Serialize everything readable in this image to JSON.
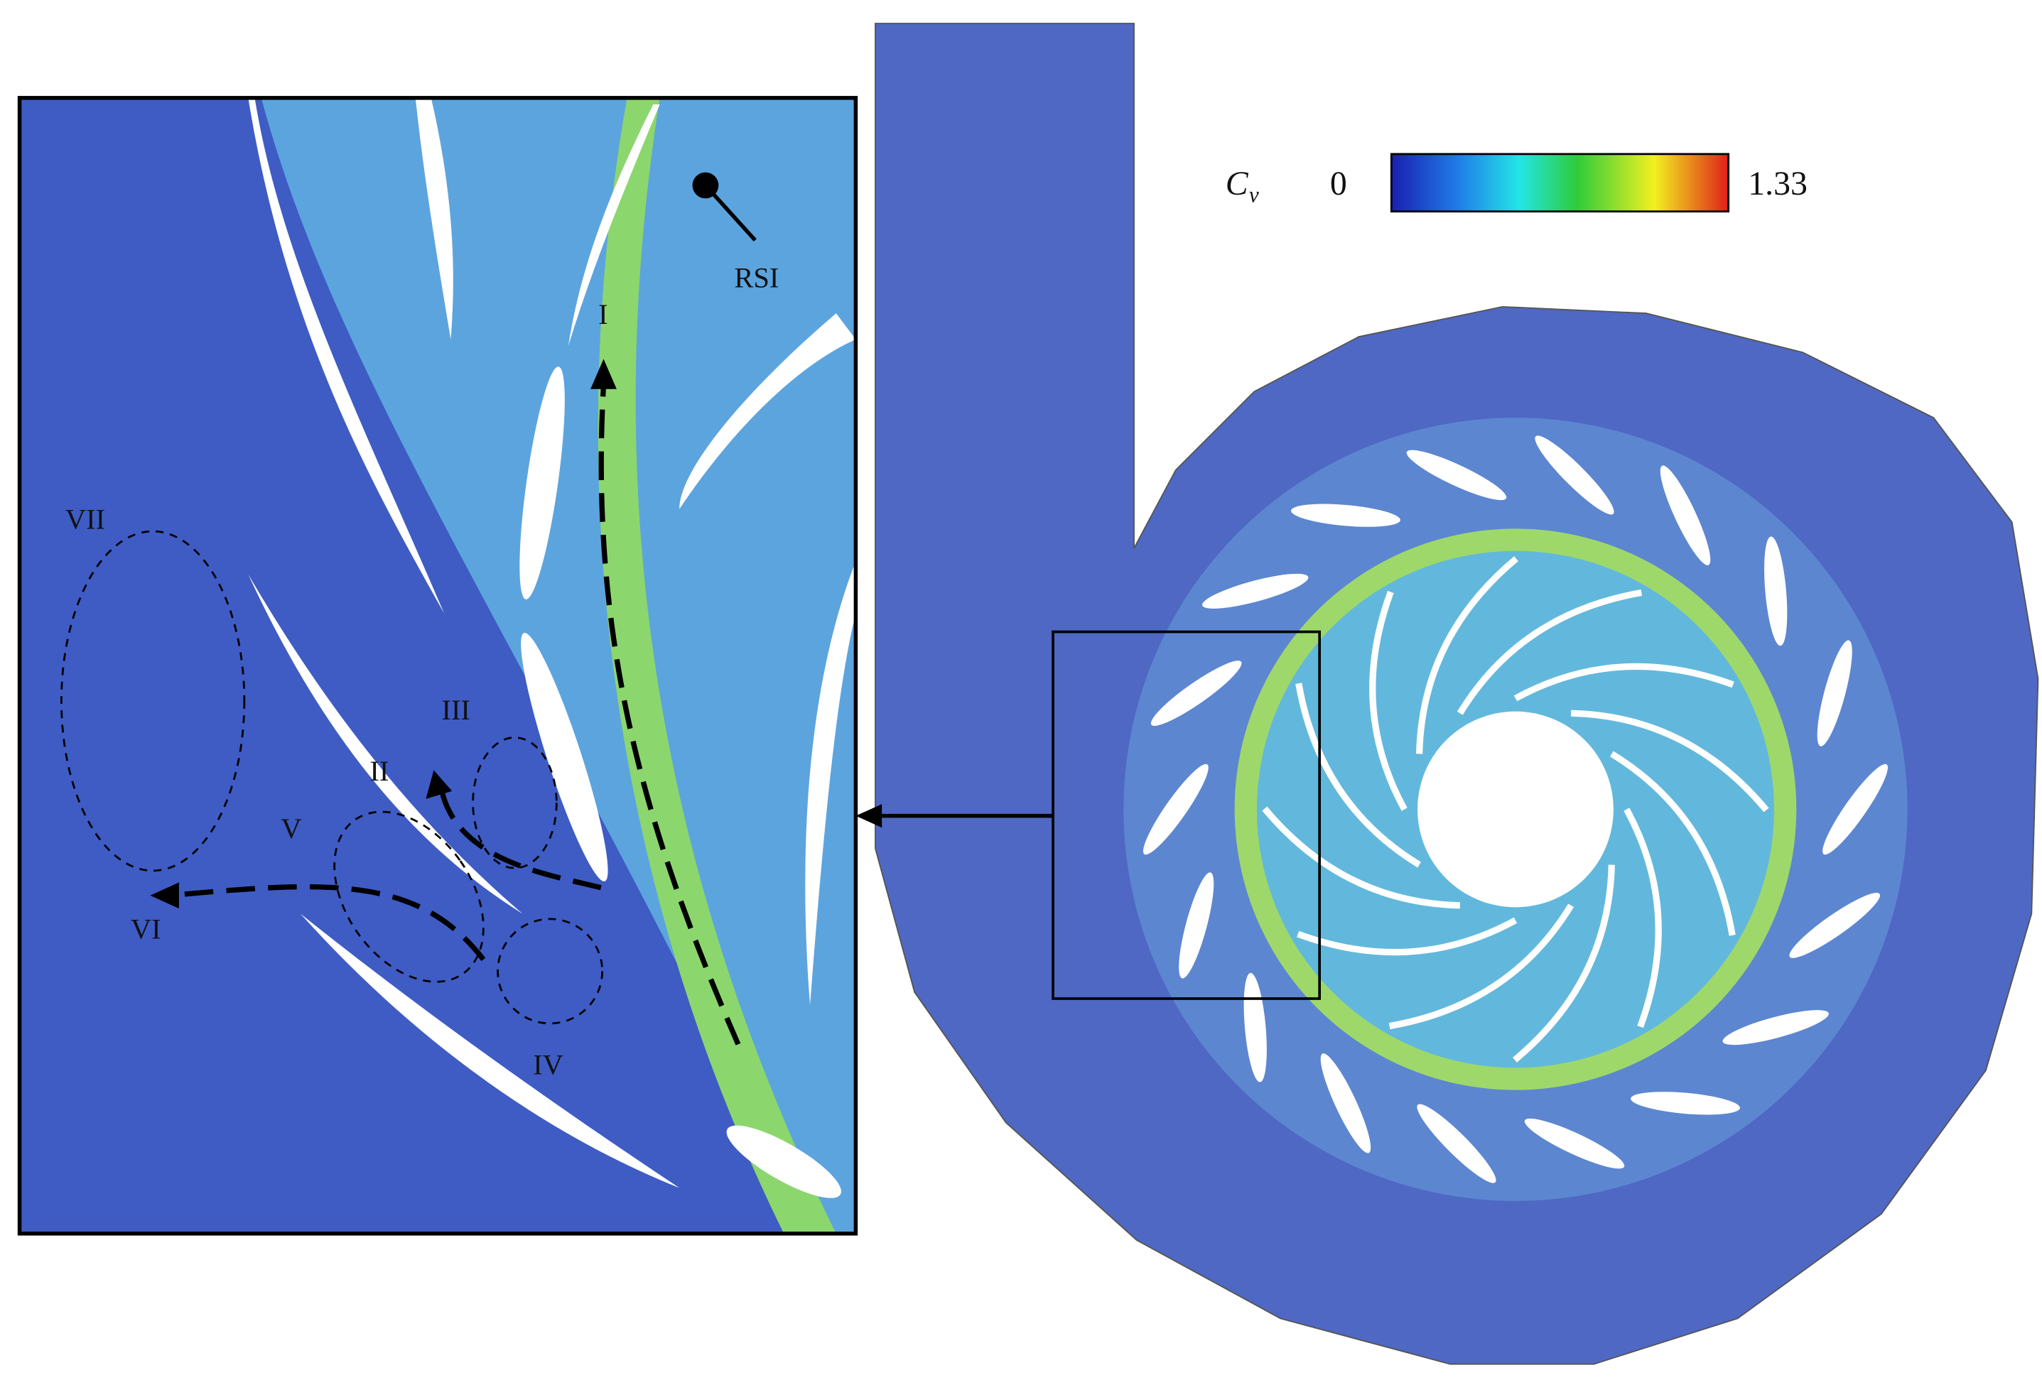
{
  "colorbar": {
    "symbol": "C",
    "subscript": "v",
    "min": 0,
    "max": 1.33
  },
  "annotations": {
    "point": "RSI",
    "regions": [
      "I",
      "II",
      "III",
      "IV",
      "V",
      "VI",
      "VII"
    ]
  }
}
